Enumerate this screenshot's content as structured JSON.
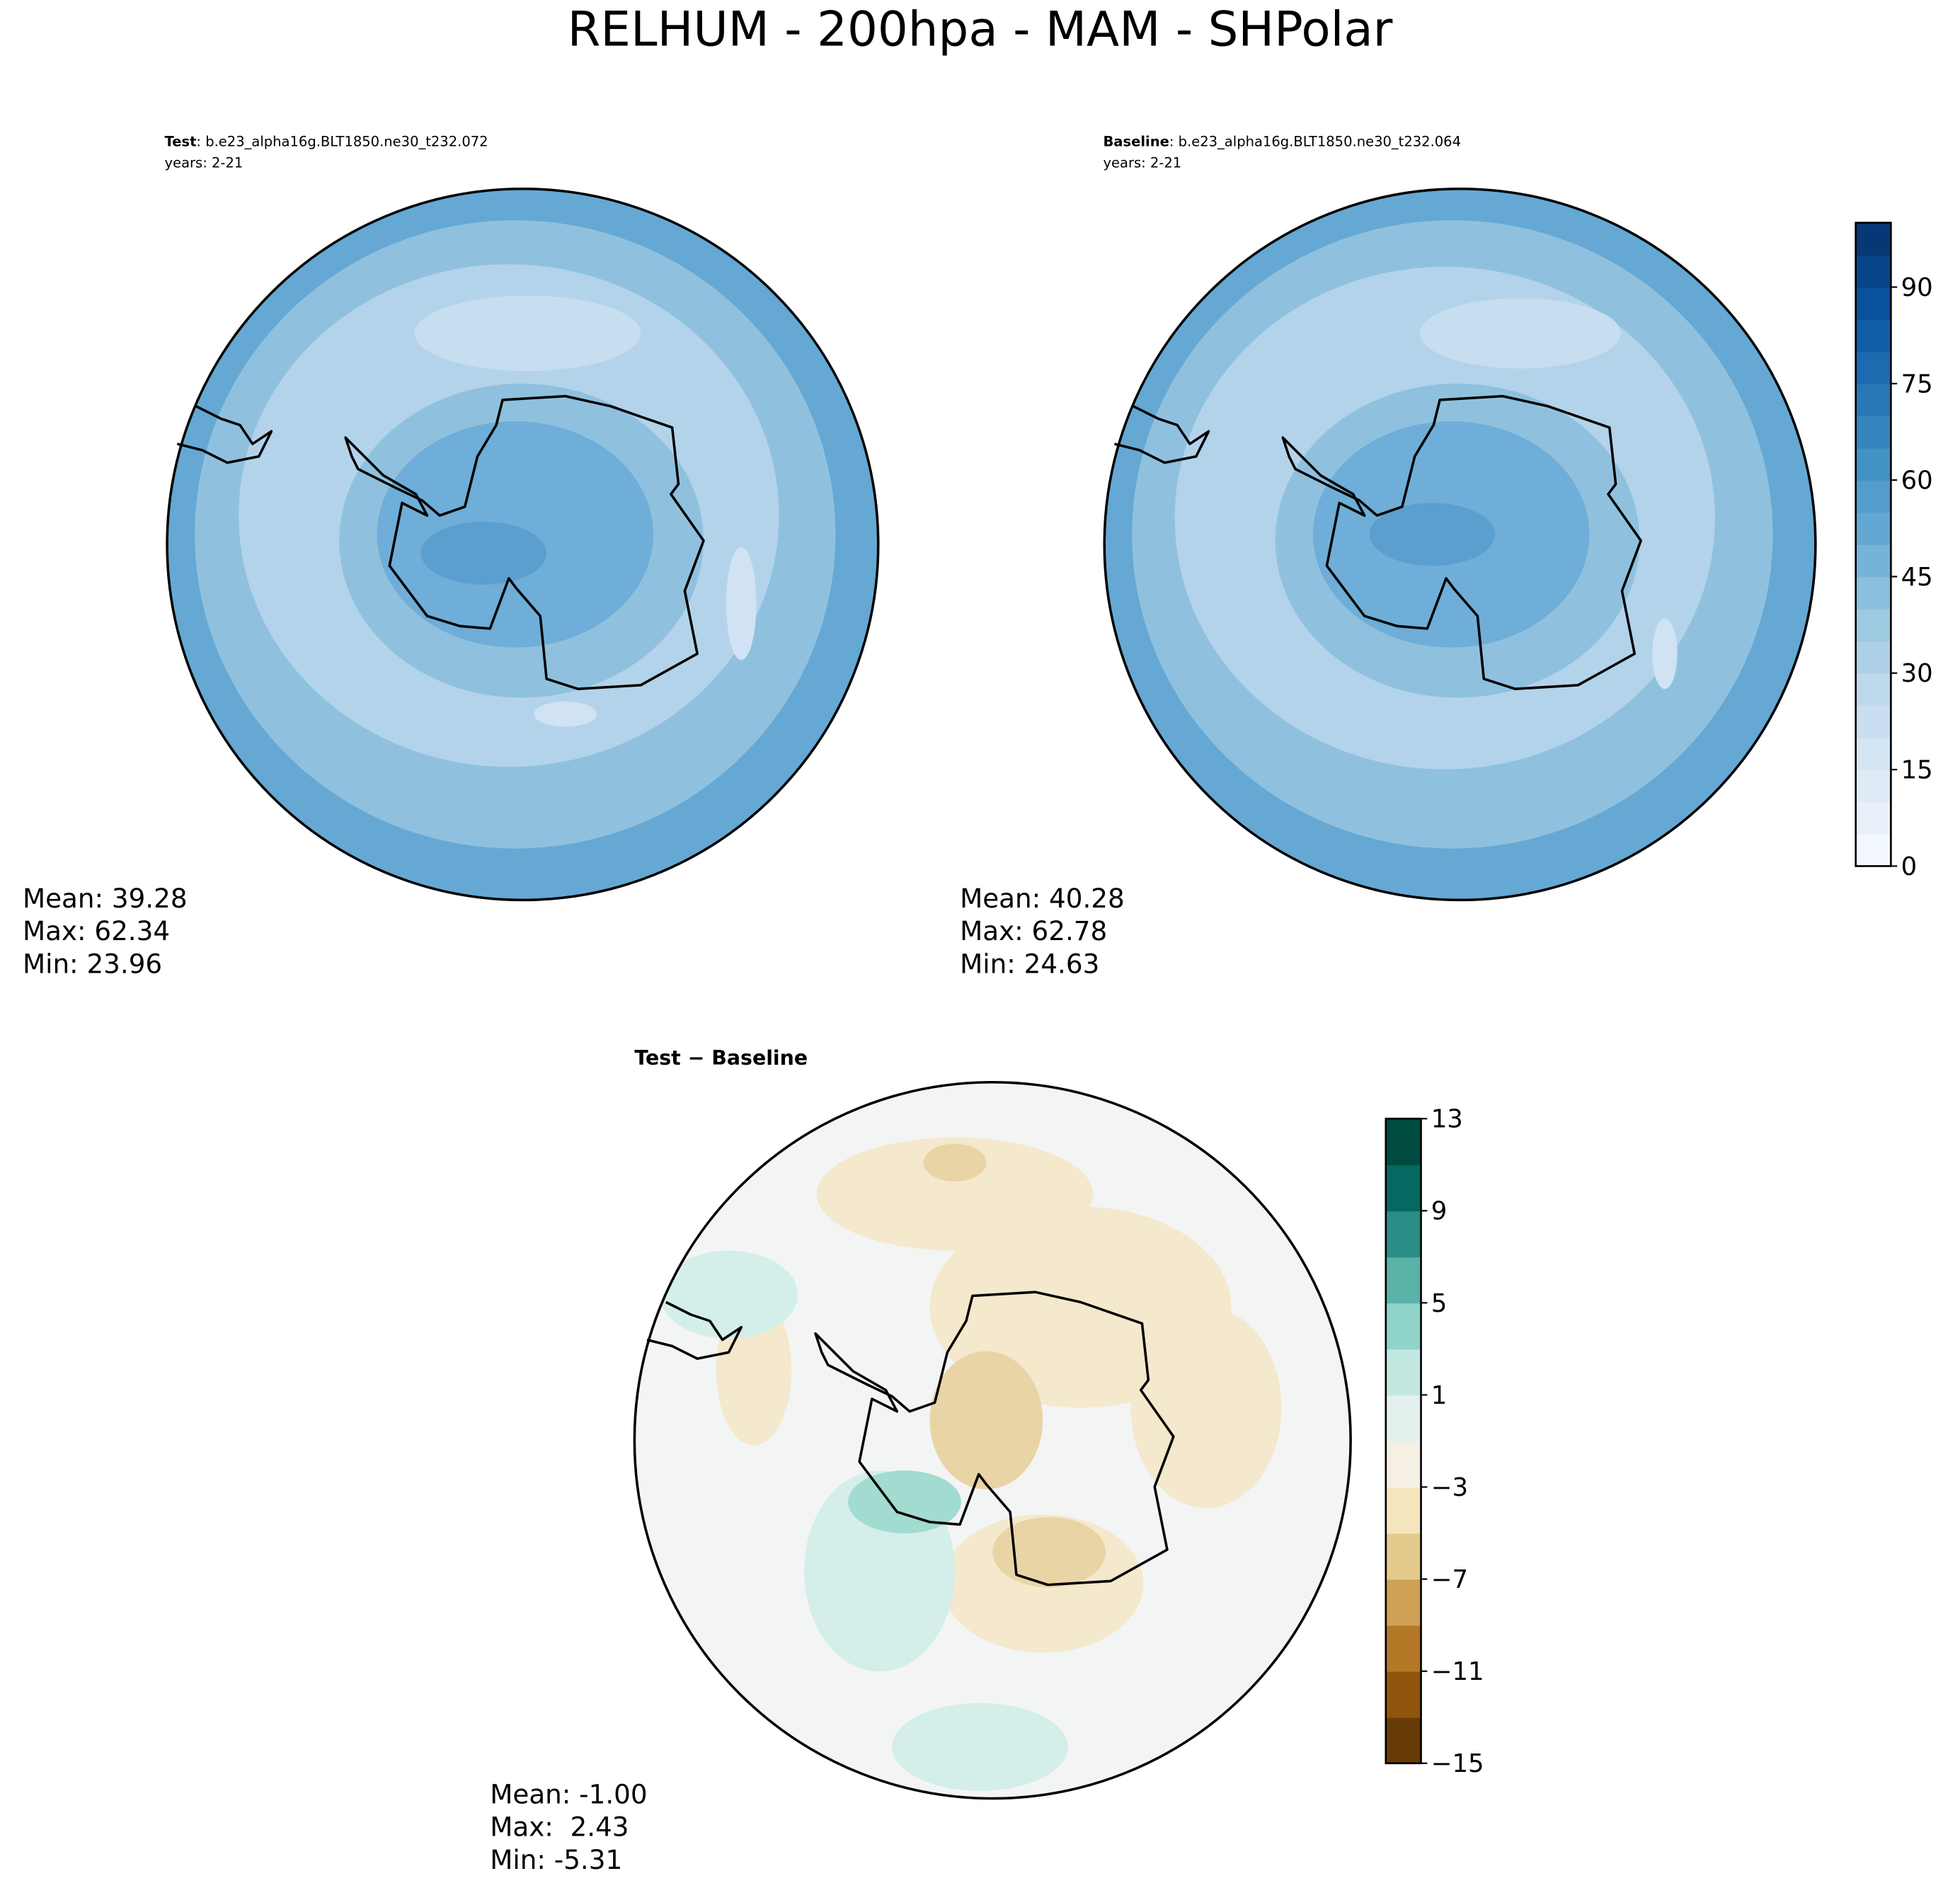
{
  "title": "RELHUM - 200hpa - MAM - SHPolar",
  "panels": [
    {
      "label": "Test",
      "case": ": b.e23_alpha16g.BLT1850.ne30_t232.072",
      "years": "years: 2-21",
      "stats": [
        "Mean: 39.28",
        "Max: 62.34",
        "Min: 23.96"
      ]
    },
    {
      "label": "Baseline",
      "case": ": b.e23_alpha16g.BLT1850.ne30_t232.064",
      "years": "years: 2-21",
      "stats": [
        "Mean: 40.28",
        "Max: 62.78",
        "Min: 24.63"
      ]
    },
    {
      "label": "Test − Baseline",
      "stats": [
        "Mean: -1.00",
        "Max:  2.43",
        "Min: -5.31"
      ]
    }
  ],
  "colorbars": [
    {
      "lim": [
        0,
        100
      ],
      "ticks": [
        0,
        15,
        30,
        45,
        60,
        75,
        90
      ],
      "step": 5,
      "cmap": [
        "#f7fbff",
        "#deebf7",
        "#c6dbef",
        "#9ecae1",
        "#6baed6",
        "#4292c6",
        "#2171b5",
        "#08519c",
        "#08306b"
      ]
    },
    {
      "lim": [
        -15,
        13
      ],
      "ticks": [
        {
          "value": -15,
          "label": "−15"
        },
        {
          "value": -11,
          "label": "−11"
        },
        {
          "value": -7,
          "label": "−7"
        },
        {
          "value": -3,
          "label": "−3"
        },
        1,
        5,
        9,
        13
      ],
      "step": 2,
      "cmap": [
        "#543005",
        "#8c510a",
        "#bf812d",
        "#dfc27d",
        "#f6e8c3",
        "#f5f5f5",
        "#c7eae5",
        "#80cdc1",
        "#35978f",
        "#01665e",
        "#003c30"
      ]
    }
  ]
}
